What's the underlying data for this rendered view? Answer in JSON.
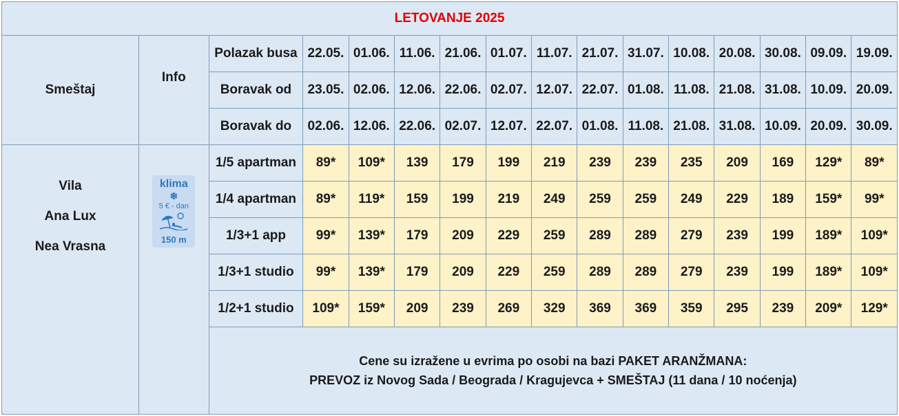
{
  "title": "LETOVANJE 2025",
  "header": {
    "smestaj": "Smeštaj",
    "info": "Info",
    "rows": [
      {
        "label": "Polazak busa",
        "dates": [
          "22.05.",
          "01.06.",
          "11.06.",
          "21.06.",
          "01.07.",
          "11.07.",
          "21.07.",
          "31.07.",
          "10.08.",
          "20.08.",
          "30.08.",
          "09.09.",
          "19.09."
        ]
      },
      {
        "label": "Boravak od",
        "dates": [
          "23.05.",
          "02.06.",
          "12.06.",
          "22.06.",
          "02.07.",
          "12.07.",
          "22.07.",
          "01.08.",
          "11.08.",
          "21.08.",
          "31.08.",
          "10.09.",
          "20.09."
        ]
      },
      {
        "label": "Boravak do",
        "dates": [
          "02.06.",
          "12.06.",
          "22.06.",
          "02.07.",
          "12.07.",
          "22.07.",
          "01.08.",
          "11.08.",
          "21.08.",
          "31.08.",
          "10.09.",
          "20.09.",
          "30.09."
        ]
      }
    ]
  },
  "accommodation": {
    "line1": "Vila",
    "line2": "Ana Lux",
    "line3": "Nea Vrasna"
  },
  "info_badge": {
    "klima": "klima",
    "fee": "5 € - dan",
    "distance": "150 m"
  },
  "rooms": [
    {
      "type": "1/5 apartman",
      "prices": [
        "89*",
        "109*",
        "139",
        "179",
        "199",
        "219",
        "239",
        "239",
        "235",
        "209",
        "169",
        "129*",
        "89*"
      ]
    },
    {
      "type": "1/4 apartman",
      "prices": [
        "89*",
        "119*",
        "159",
        "199",
        "219",
        "249",
        "259",
        "259",
        "249",
        "229",
        "189",
        "159*",
        "99*"
      ]
    },
    {
      "type": "1/3+1 app",
      "prices": [
        "99*",
        "139*",
        "179",
        "209",
        "229",
        "259",
        "289",
        "289",
        "279",
        "239",
        "199",
        "189*",
        "109*"
      ]
    },
    {
      "type": "1/3+1 studio",
      "prices": [
        "99*",
        "139*",
        "179",
        "209",
        "229",
        "259",
        "289",
        "289",
        "279",
        "239",
        "199",
        "189*",
        "109*"
      ]
    },
    {
      "type": "1/2+1 studio",
      "prices": [
        "109*",
        "159*",
        "209",
        "239",
        "269",
        "329",
        "369",
        "369",
        "359",
        "295",
        "239",
        "209*",
        "129*"
      ]
    }
  ],
  "note": {
    "line1": "Cene su izražene u evrima po osobi na bazi PAKET ARANŽMANA:",
    "line2": "PREVOZ iz Novog Sada / Beograda / Kragujevca + SMEŠTAJ (11 dana / 10 noćenja)"
  }
}
